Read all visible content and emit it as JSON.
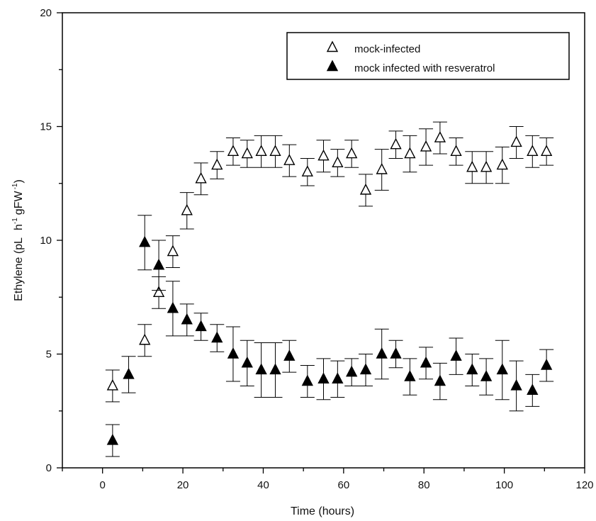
{
  "chart_data": {
    "type": "scatter",
    "xlabel": "Time (hours)",
    "ylabel": {
      "text_1": "Ethylene (pL",
      "text_2": "h",
      "sup_1": "-1",
      "text_3": "gFW",
      "sup_2": "-1",
      "text_4": ")"
    },
    "xlim": [
      -10,
      120
    ],
    "ylim": [
      0,
      20
    ],
    "xticks": [
      0,
      20,
      40,
      60,
      80,
      100,
      120
    ],
    "yticks": [
      0,
      5,
      10,
      15,
      20
    ],
    "grid": false,
    "legend_position": "top-right",
    "series": [
      {
        "name": "mock-infected",
        "marker": "open-triangle",
        "color": "#000000",
        "x": [
          2.5,
          10.5,
          14,
          17.5,
          21,
          24.5,
          28.5,
          32.5,
          36,
          39.5,
          43,
          46.5,
          51,
          55,
          58.5,
          62,
          65.5,
          69.5,
          73,
          76.5,
          80.5,
          84,
          88,
          92,
          95.5,
          99.5,
          103,
          107,
          110.5
        ],
        "y": [
          3.6,
          5.6,
          7.7,
          9.5,
          11.3,
          12.7,
          13.3,
          13.9,
          13.8,
          13.9,
          13.9,
          13.5,
          13.0,
          13.7,
          13.4,
          13.8,
          12.2,
          13.1,
          14.2,
          13.8,
          14.1,
          14.5,
          13.9,
          13.2,
          13.2,
          13.3,
          14.3,
          13.9,
          13.9
        ],
        "err": [
          0.7,
          0.7,
          0.7,
          0.7,
          0.8,
          0.7,
          0.6,
          0.6,
          0.6,
          0.7,
          0.7,
          0.7,
          0.6,
          0.7,
          0.6,
          0.6,
          0.7,
          0.9,
          0.6,
          0.8,
          0.8,
          0.7,
          0.6,
          0.7,
          0.7,
          0.8,
          0.7,
          0.7,
          0.6
        ]
      },
      {
        "name": "mock infected with resveratrol",
        "marker": "filled-triangle",
        "color": "#000000",
        "x": [
          2.5,
          6.5,
          10.5,
          14,
          17.5,
          21,
          24.5,
          28.5,
          32.5,
          36,
          39.5,
          43,
          46.5,
          51,
          55,
          58.5,
          62,
          65.5,
          69.5,
          73,
          76.5,
          80.5,
          84,
          88,
          92,
          95.5,
          99.5,
          103,
          107,
          110.5
        ],
        "y": [
          1.2,
          4.1,
          9.9,
          8.9,
          7.0,
          6.5,
          6.2,
          5.7,
          5.0,
          4.6,
          4.3,
          4.3,
          4.9,
          3.8,
          3.9,
          3.9,
          4.2,
          4.3,
          5.0,
          5.0,
          4.0,
          4.6,
          3.8,
          4.9,
          4.3,
          4.0,
          4.3,
          3.6,
          3.4,
          4.5
        ]
      }
    ]
  },
  "chart_errors": {
    "series_2_err": [
      0.7,
      0.8,
      1.2,
      1.1,
      1.2,
      0.7,
      0.6,
      0.6,
      1.2,
      1.0,
      1.2,
      1.2,
      0.7,
      0.7,
      0.9,
      0.8,
      0.6,
      0.7,
      1.1,
      0.6,
      0.8,
      0.7,
      0.8,
      0.8,
      0.7,
      0.8,
      1.3,
      1.1,
      0.7,
      0.7
    ]
  }
}
